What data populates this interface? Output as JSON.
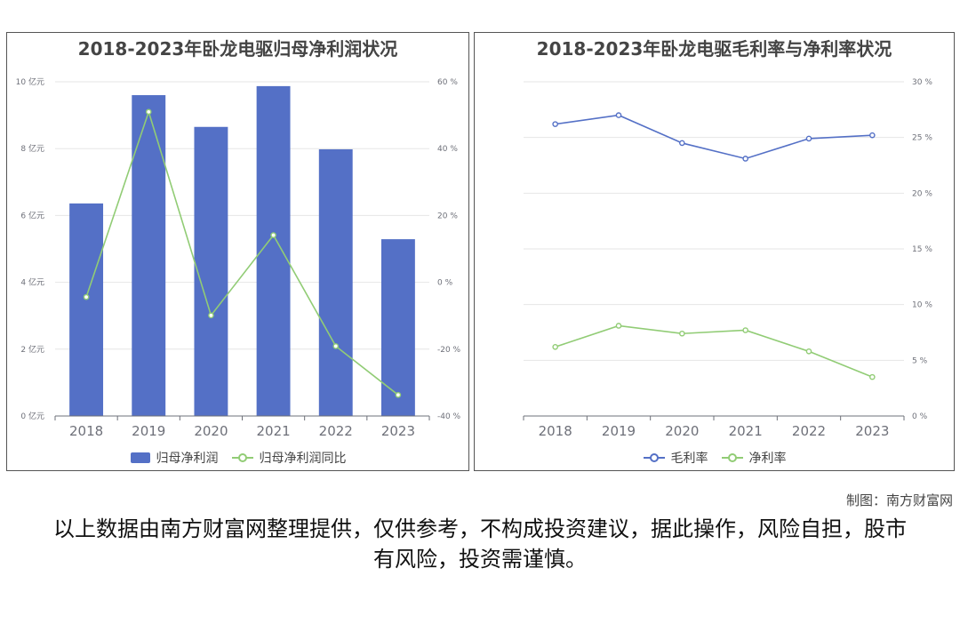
{
  "charts": {
    "left": {
      "title": "2018-2023年卧龙电驱归母净利润状况",
      "legend": [
        {
          "label": "归母净利润",
          "kind": "bar",
          "color": "#5470c6"
        },
        {
          "label": "归母净利润同比",
          "kind": "line",
          "color": "#91cc75"
        }
      ]
    },
    "right": {
      "title": "2018-2023年卧龙电驱毛利率与净利率状况",
      "legend": [
        {
          "label": "毛利率",
          "kind": "line",
          "color": "#5470c6"
        },
        {
          "label": "净利率",
          "kind": "line",
          "color": "#91cc75"
        }
      ]
    }
  },
  "credit": "制图：南方财富网",
  "disclaimer": "以上数据由南方财富网整理提供，仅供参考，不构成投资建议，据此操作，风险自担，股市有风险，投资需谨慎。",
  "chart_data": [
    {
      "type": "bar",
      "title": "2018-2023年卧龙电驱归母净利润状况",
      "categories": [
        "2018",
        "2019",
        "2020",
        "2021",
        "2022",
        "2023"
      ],
      "y_left": {
        "ticks": [
          0,
          2,
          4,
          6,
          8,
          10
        ],
        "tick_suffix": " 亿元",
        "range": [
          0,
          10
        ]
      },
      "y_right": {
        "ticks": [
          -40,
          -20,
          0,
          20,
          40,
          60
        ],
        "tick_suffix": " %",
        "range": [
          -40,
          60
        ]
      },
      "series": [
        {
          "name": "归母净利润",
          "type": "bar",
          "axis": "left",
          "color": "#5470c6",
          "values": [
            6.36,
            9.6,
            8.65,
            9.87,
            7.98,
            5.29
          ]
        },
        {
          "name": "归母净利润同比",
          "type": "line",
          "axis": "right",
          "color": "#91cc75",
          "values": [
            -4.4,
            51.0,
            -9.9,
            14.1,
            -19.1,
            -33.7
          ]
        }
      ],
      "grid": true,
      "legend": "bottom"
    },
    {
      "type": "line",
      "title": "2018-2023年卧龙电驱毛利率与净利率状况",
      "categories": [
        "2018",
        "2019",
        "2020",
        "2021",
        "2022",
        "2023"
      ],
      "y_right": {
        "ticks": [
          0,
          5,
          10,
          15,
          20,
          25,
          30
        ],
        "tick_suffix": " %",
        "range": [
          0,
          30
        ]
      },
      "series": [
        {
          "name": "毛利率",
          "type": "line",
          "axis": "right",
          "color": "#5470c6",
          "values": [
            26.2,
            27.0,
            24.5,
            23.1,
            24.9,
            25.2
          ]
        },
        {
          "name": "净利率",
          "type": "line",
          "axis": "right",
          "color": "#91cc75",
          "values": [
            6.2,
            8.1,
            7.4,
            7.7,
            5.8,
            3.5
          ]
        }
      ],
      "grid": true,
      "legend": "bottom"
    }
  ]
}
